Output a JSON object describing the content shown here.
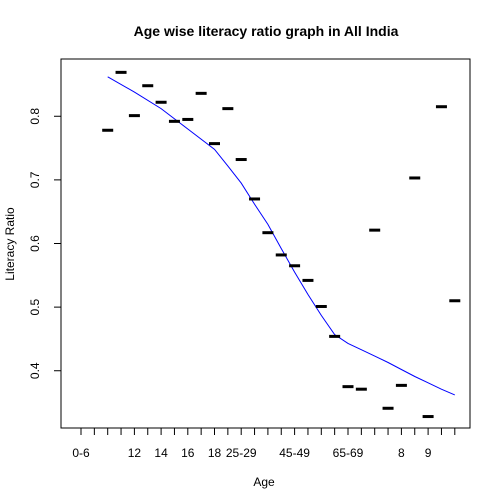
{
  "chart_data": {
    "type": "scatter",
    "title": "Age wise literacy ratio graph in All India",
    "xlabel": "Age",
    "ylabel": "Literacy Ratio",
    "ylim": [
      0.31,
      0.89
    ],
    "y_ticks": [
      0.4,
      0.5,
      0.6,
      0.7,
      0.8
    ],
    "x_slot_count": 29,
    "x_tick_labels": [
      {
        "slot": 1,
        "label": "0-6"
      },
      {
        "slot": 5,
        "label": "12"
      },
      {
        "slot": 7,
        "label": "14"
      },
      {
        "slot": 9,
        "label": "16"
      },
      {
        "slot": 11,
        "label": "18"
      },
      {
        "slot": 13,
        "label": "25-29"
      },
      {
        "slot": 17,
        "label": "45-49"
      },
      {
        "slot": 21,
        "label": "65-69"
      },
      {
        "slot": 25,
        "label": "8"
      },
      {
        "slot": 27,
        "label": "9"
      }
    ],
    "points": [
      {
        "slot": 3,
        "value": 0.778
      },
      {
        "slot": 4,
        "value": 0.869
      },
      {
        "slot": 5,
        "value": 0.801
      },
      {
        "slot": 6,
        "value": 0.848
      },
      {
        "slot": 7,
        "value": 0.822
      },
      {
        "slot": 8,
        "value": 0.792
      },
      {
        "slot": 9,
        "value": 0.795
      },
      {
        "slot": 10,
        "value": 0.836
      },
      {
        "slot": 11,
        "value": 0.757
      },
      {
        "slot": 12,
        "value": 0.812
      },
      {
        "slot": 13,
        "value": 0.732
      },
      {
        "slot": 14,
        "value": 0.67
      },
      {
        "slot": 15,
        "value": 0.617
      },
      {
        "slot": 16,
        "value": 0.582
      },
      {
        "slot": 17,
        "value": 0.565
      },
      {
        "slot": 18,
        "value": 0.542
      },
      {
        "slot": 19,
        "value": 0.501
      },
      {
        "slot": 20,
        "value": 0.454
      },
      {
        "slot": 21,
        "value": 0.375
      },
      {
        "slot": 22,
        "value": 0.371
      },
      {
        "slot": 23,
        "value": 0.621
      },
      {
        "slot": 24,
        "value": 0.341
      },
      {
        "slot": 25,
        "value": 0.377
      },
      {
        "slot": 26,
        "value": 0.703
      },
      {
        "slot": 27,
        "value": 0.328
      },
      {
        "slot": 28,
        "value": 0.815
      },
      {
        "slot": 29,
        "value": 0.51
      }
    ],
    "trend_line": {
      "color": "#0000ff",
      "points": [
        {
          "slot": 3,
          "value": 0.862
        },
        {
          "slot": 5,
          "value": 0.838
        },
        {
          "slot": 7,
          "value": 0.812
        },
        {
          "slot": 9,
          "value": 0.78
        },
        {
          "slot": 11,
          "value": 0.748
        },
        {
          "slot": 12,
          "value": 0.722
        },
        {
          "slot": 13,
          "value": 0.695
        },
        {
          "slot": 14,
          "value": 0.662
        },
        {
          "slot": 15,
          "value": 0.63
        },
        {
          "slot": 16,
          "value": 0.592
        },
        {
          "slot": 17,
          "value": 0.555
        },
        {
          "slot": 18,
          "value": 0.52
        },
        {
          "slot": 19,
          "value": 0.487
        },
        {
          "slot": 20,
          "value": 0.457
        },
        {
          "slot": 21,
          "value": 0.443
        },
        {
          "slot": 22,
          "value": 0.433
        },
        {
          "slot": 23,
          "value": 0.423
        },
        {
          "slot": 24,
          "value": 0.413
        },
        {
          "slot": 25,
          "value": 0.402
        },
        {
          "slot": 26,
          "value": 0.391
        },
        {
          "slot": 27,
          "value": 0.381
        },
        {
          "slot": 28,
          "value": 0.371
        },
        {
          "slot": 29,
          "value": 0.362
        }
      ]
    },
    "colors": {
      "points": "#000000",
      "trend": "#0000ff",
      "axis": "#000000"
    }
  }
}
